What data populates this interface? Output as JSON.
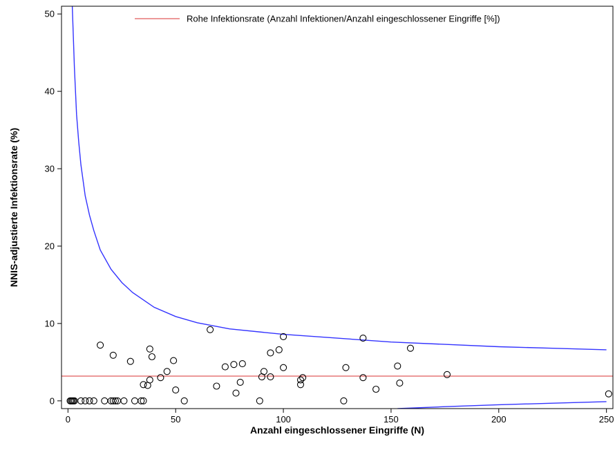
{
  "chart_data": {
    "type": "scatter",
    "title": "",
    "xlabel": "Anzahl eingeschlossener Eingriffe (N)",
    "ylabel": "NNIS-adjustierte Infektionsrate (%)",
    "xlim": [
      -3,
      253
    ],
    "ylim": [
      -1,
      51
    ],
    "xticks": [
      0,
      50,
      100,
      150,
      200,
      250
    ],
    "yticks": [
      0,
      10,
      20,
      30,
      40,
      50
    ],
    "grid": false,
    "legend": {
      "placement": "top-right",
      "entries": [
        {
          "label": "Rohe Infektionsrate (Anzahl Infektionen/Anzahl eingeschlossener Eingriffe [%])",
          "color": "#e05a5a"
        }
      ]
    },
    "crude_rate": 3.2,
    "crude_rate_color": "#e05a5a",
    "limit_color": "#3333ff",
    "upper_limit": {
      "x": [
        2,
        3,
        4,
        5,
        6,
        8,
        10,
        12,
        15,
        20,
        25,
        30,
        40,
        50,
        60,
        75,
        100,
        125,
        150,
        175,
        200,
        225,
        250
      ],
      "y": [
        51,
        43,
        37,
        33.5,
        30.5,
        26.5,
        24,
        22,
        19.5,
        17,
        15.3,
        14,
        12.1,
        10.9,
        10.1,
        9.3,
        8.6,
        8.1,
        7.6,
        7.3,
        7.0,
        6.8,
        6.6
      ]
    },
    "lower_limit": {
      "x": [
        153,
        175,
        200,
        225,
        250
      ],
      "y": [
        -1,
        -0.75,
        -0.5,
        -0.3,
        -0.1
      ]
    },
    "points": [
      {
        "x": 1,
        "y": 0
      },
      {
        "x": 1.5,
        "y": 0
      },
      {
        "x": 2,
        "y": 0
      },
      {
        "x": 2.5,
        "y": 0
      },
      {
        "x": 3,
        "y": 0
      },
      {
        "x": 6,
        "y": 0
      },
      {
        "x": 8,
        "y": 0
      },
      {
        "x": 10,
        "y": 0
      },
      {
        "x": 12,
        "y": 0
      },
      {
        "x": 17,
        "y": 0
      },
      {
        "x": 20,
        "y": 0
      },
      {
        "x": 21,
        "y": 0
      },
      {
        "x": 22,
        "y": 0
      },
      {
        "x": 23,
        "y": 0
      },
      {
        "x": 26,
        "y": 0
      },
      {
        "x": 31,
        "y": 0
      },
      {
        "x": 34,
        "y": 0
      },
      {
        "x": 35,
        "y": 0
      },
      {
        "x": 54,
        "y": 0
      },
      {
        "x": 89,
        "y": 0
      },
      {
        "x": 128,
        "y": 0
      },
      {
        "x": 15,
        "y": 7.2
      },
      {
        "x": 21,
        "y": 5.9
      },
      {
        "x": 29,
        "y": 5.1
      },
      {
        "x": 35,
        "y": 2.1
      },
      {
        "x": 37,
        "y": 2.0
      },
      {
        "x": 38,
        "y": 2.7
      },
      {
        "x": 38,
        "y": 6.7
      },
      {
        "x": 39,
        "y": 5.7
      },
      {
        "x": 43,
        "y": 3.0
      },
      {
        "x": 46,
        "y": 3.8
      },
      {
        "x": 49,
        "y": 5.2
      },
      {
        "x": 50,
        "y": 1.4
      },
      {
        "x": 66,
        "y": 9.2
      },
      {
        "x": 69,
        "y": 1.9
      },
      {
        "x": 73,
        "y": 4.4
      },
      {
        "x": 77,
        "y": 4.7
      },
      {
        "x": 78,
        "y": 1.0
      },
      {
        "x": 80,
        "y": 2.4
      },
      {
        "x": 81,
        "y": 4.8
      },
      {
        "x": 90,
        "y": 3.1
      },
      {
        "x": 91,
        "y": 3.8
      },
      {
        "x": 94,
        "y": 6.2
      },
      {
        "x": 94,
        "y": 3.1
      },
      {
        "x": 98,
        "y": 6.6
      },
      {
        "x": 100,
        "y": 8.3
      },
      {
        "x": 100,
        "y": 4.3
      },
      {
        "x": 108,
        "y": 2.7
      },
      {
        "x": 108,
        "y": 2.1
      },
      {
        "x": 109,
        "y": 3.0
      },
      {
        "x": 129,
        "y": 4.3
      },
      {
        "x": 137,
        "y": 8.1
      },
      {
        "x": 137,
        "y": 3.0
      },
      {
        "x": 143,
        "y": 1.5
      },
      {
        "x": 153,
        "y": 4.5
      },
      {
        "x": 154,
        "y": 2.3
      },
      {
        "x": 159,
        "y": 6.8
      },
      {
        "x": 176,
        "y": 3.4
      },
      {
        "x": 251,
        "y": 0.9
      }
    ]
  }
}
